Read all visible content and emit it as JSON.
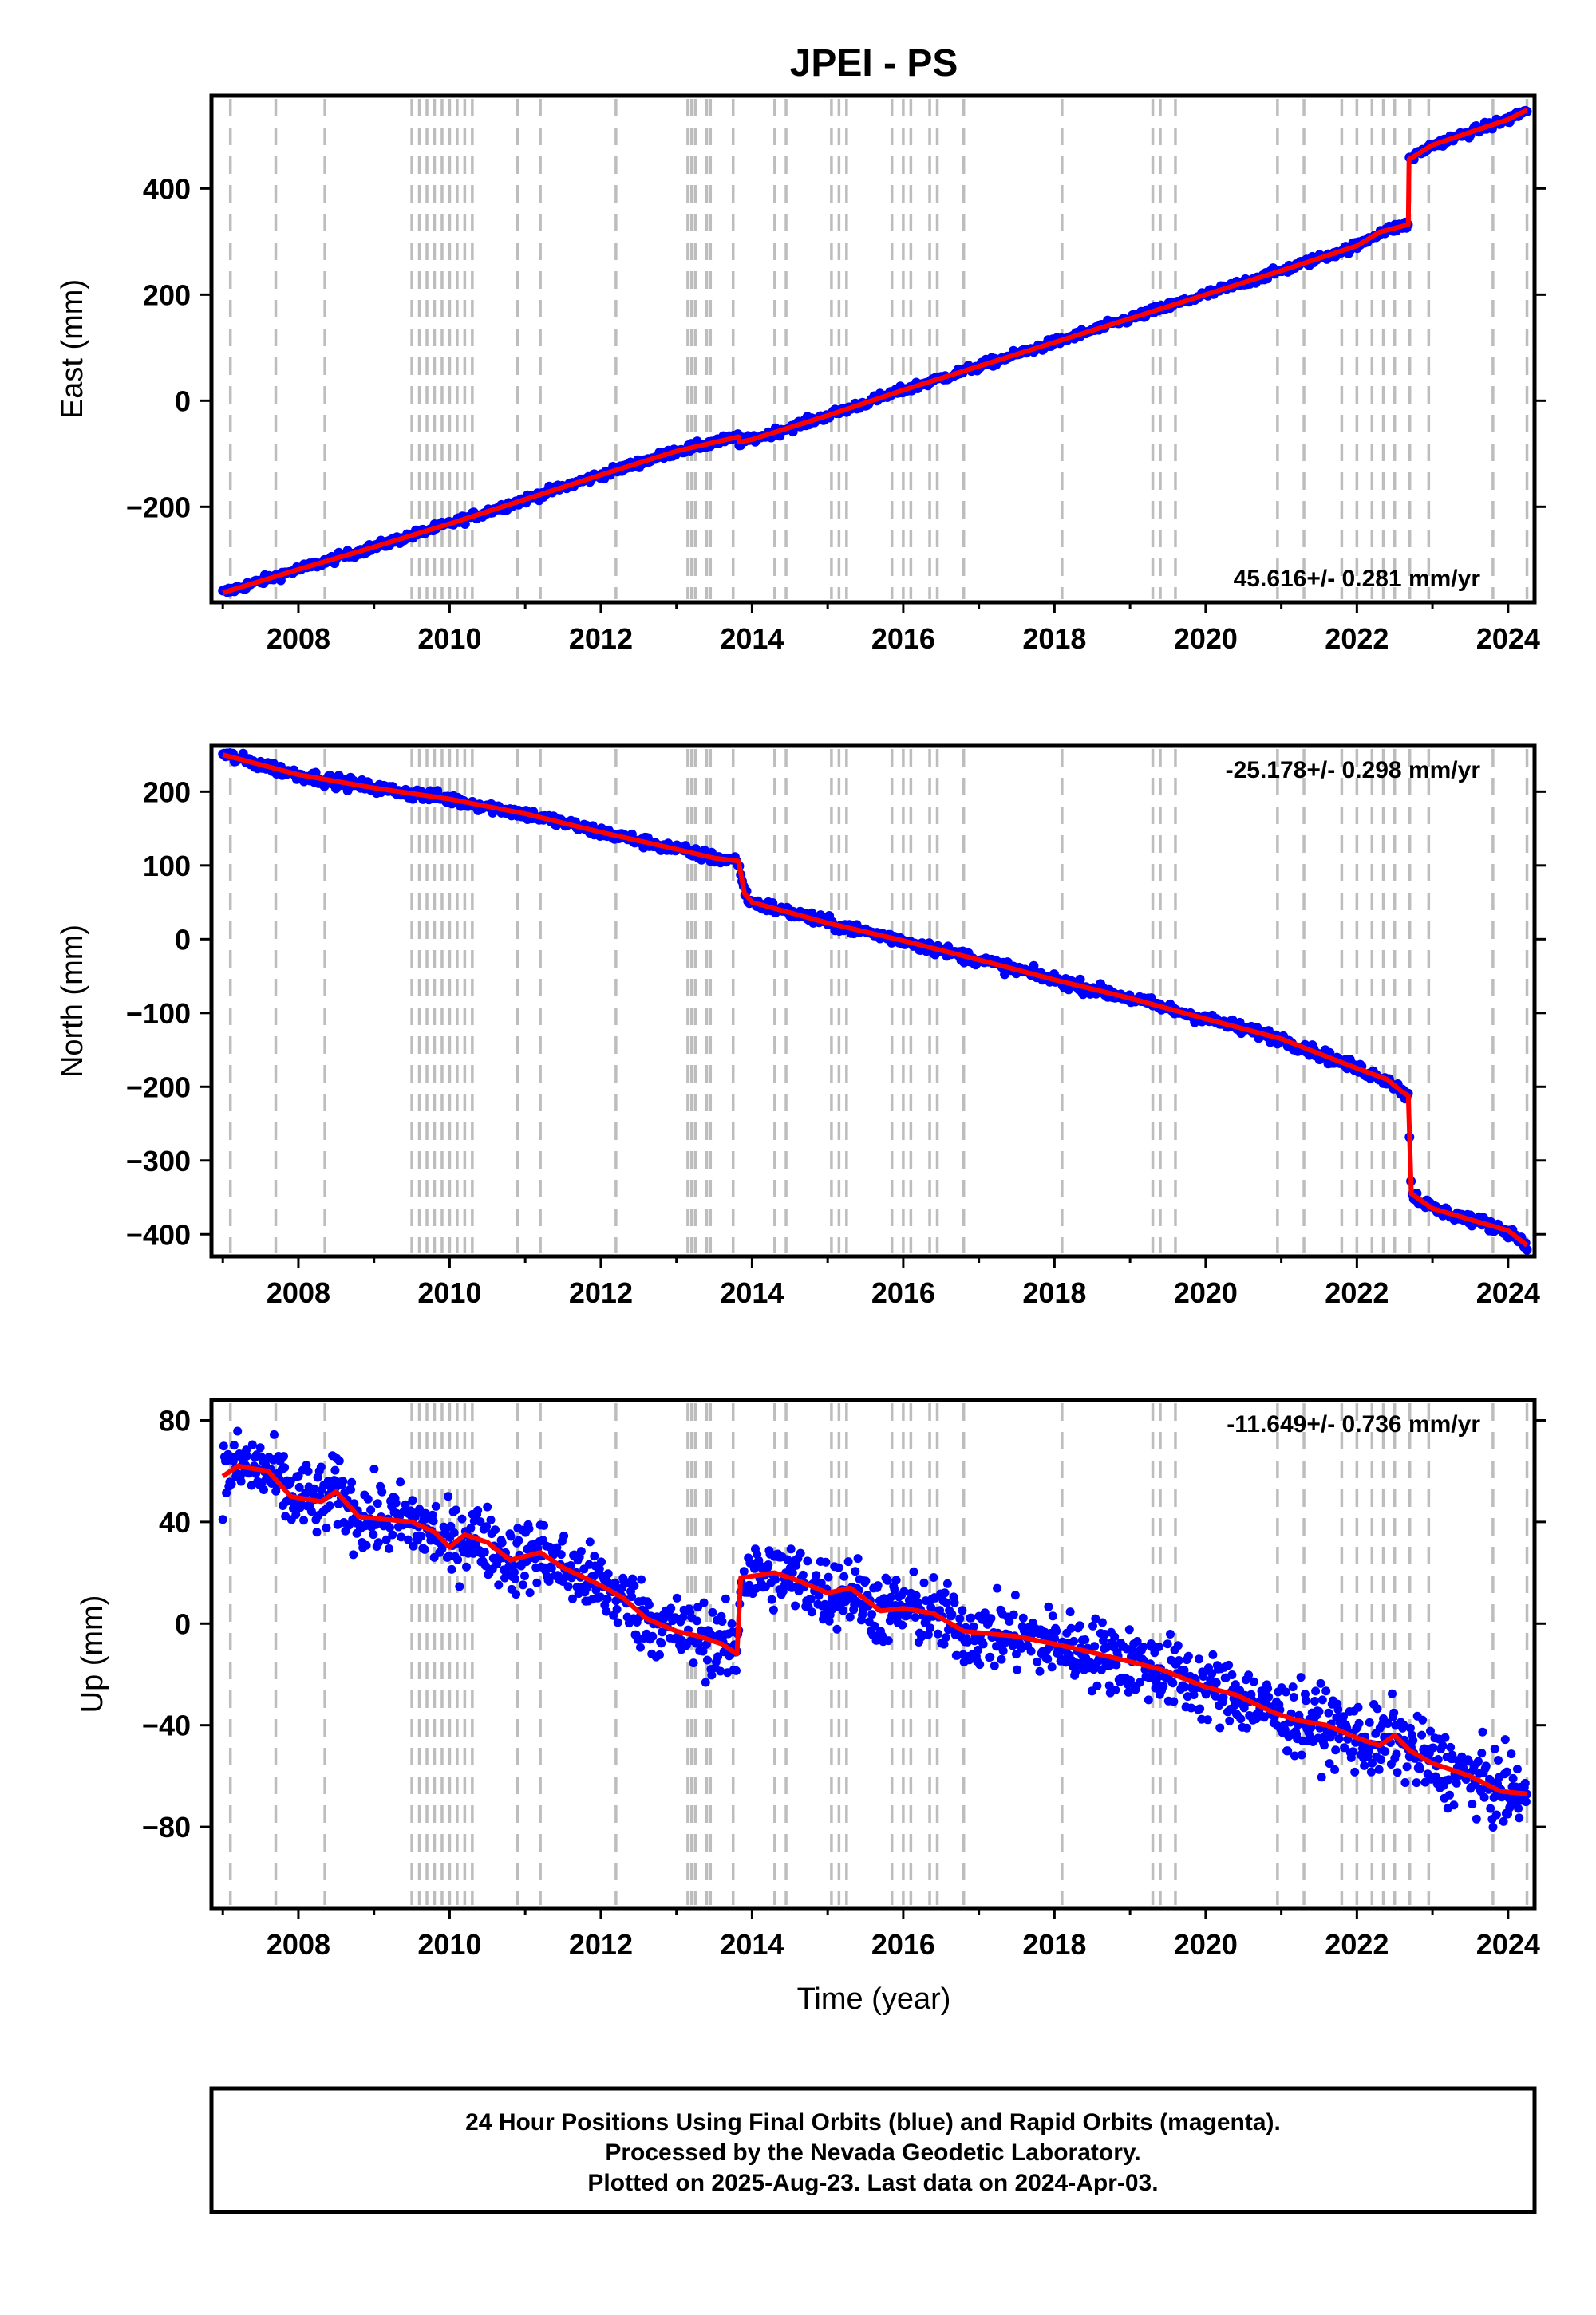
{
  "title": "JPEI - PS",
  "xlabel": "Time (year)",
  "footer": {
    "line1": "24 Hour Positions Using Final Orbits (blue) and Rapid Orbits (magenta).",
    "line2": "Processed by the Nevada Geodetic Laboratory.",
    "line3": "Plotted on 2025-Aug-23. Last data on 2024-Apr-03."
  },
  "colors": {
    "points": "#0000ff",
    "model": "#ff0000",
    "dashes": "#bdbdbd",
    "frame": "#000000"
  },
  "chart_data": {
    "type": "scatter",
    "xlim": [
      2006.85,
      2024.35
    ],
    "x_ticks": [
      2008,
      2010,
      2012,
      2014,
      2016,
      2018,
      2020,
      2022,
      2024
    ],
    "x_tick_labels": [
      "2008",
      "2010",
      "2012",
      "2014",
      "2016",
      "2018",
      "2020",
      "2022",
      "2024"
    ],
    "event_lines": [
      2007.1,
      2007.7,
      2008.35,
      2009.5,
      2009.6,
      2009.7,
      2009.8,
      2009.9,
      2010.0,
      2010.1,
      2010.2,
      2010.3,
      2010.9,
      2011.2,
      2012.2,
      2013.15,
      2013.2,
      2013.25,
      2013.4,
      2013.45,
      2013.75,
      2014.3,
      2014.45,
      2015.05,
      2015.15,
      2015.25,
      2015.85,
      2016.0,
      2016.1,
      2016.35,
      2016.45,
      2016.8,
      2018.1,
      2019.3,
      2019.4,
      2019.6,
      2020.95,
      2021.3,
      2021.8,
      2022.0,
      2022.2,
      2022.35,
      2022.5,
      2022.7,
      2022.95,
      2023.8,
      2024.25
    ],
    "panels": [
      {
        "component": "East",
        "ylabel": "East (mm)",
        "ylim": [
          -380,
          575
        ],
        "y_ticks": [
          -200,
          0,
          200,
          400
        ],
        "y_tick_labels": [
          "−200",
          "0",
          "200",
          "400"
        ],
        "rate": "45.616+/- 0.281 mm/yr",
        "rate_position": "bottom-right",
        "noise": 4,
        "model": [
          [
            2007.0,
            -362
          ],
          [
            2008.0,
            -318
          ],
          [
            2009.0,
            -276
          ],
          [
            2010.0,
            -232
          ],
          [
            2011.0,
            -186
          ],
          [
            2012.0,
            -140
          ],
          [
            2013.0,
            -95
          ],
          [
            2013.82,
            -68
          ],
          [
            2013.83,
            -78
          ],
          [
            2014.0,
            -73
          ],
          [
            2015.0,
            -28
          ],
          [
            2016.0,
            20
          ],
          [
            2017.0,
            65
          ],
          [
            2018.0,
            110
          ],
          [
            2019.0,
            155
          ],
          [
            2020.0,
            200
          ],
          [
            2021.0,
            245
          ],
          [
            2022.0,
            292
          ],
          [
            2022.3,
            318
          ],
          [
            2022.68,
            332
          ],
          [
            2022.69,
            455
          ],
          [
            2023.0,
            482
          ],
          [
            2024.0,
            530
          ],
          [
            2024.25,
            548
          ]
        ]
      },
      {
        "component": "North",
        "ylabel": "North (mm)",
        "ylim": [
          -430,
          262
        ],
        "y_ticks": [
          -400,
          -300,
          -200,
          -100,
          0,
          100,
          200
        ],
        "y_tick_labels": [
          "−400",
          "−300",
          "−200",
          "−100",
          "0",
          "100",
          "200"
        ],
        "rate": "-25.178+/- 0.298 mm/yr",
        "rate_position": "top-right",
        "noise": 4,
        "model": [
          [
            2007.0,
            250
          ],
          [
            2008.0,
            223
          ],
          [
            2009.0,
            205
          ],
          [
            2010.0,
            190
          ],
          [
            2011.0,
            170
          ],
          [
            2012.0,
            145
          ],
          [
            2013.0,
            122
          ],
          [
            2013.5,
            110
          ],
          [
            2013.82,
            106
          ],
          [
            2013.9,
            62
          ],
          [
            2014.0,
            50
          ],
          [
            2015.0,
            22
          ],
          [
            2016.0,
            -2
          ],
          [
            2017.0,
            -28
          ],
          [
            2018.0,
            -55
          ],
          [
            2019.0,
            -80
          ],
          [
            2020.0,
            -108
          ],
          [
            2021.0,
            -135
          ],
          [
            2022.0,
            -175
          ],
          [
            2022.4,
            -190
          ],
          [
            2022.6,
            -207
          ],
          [
            2022.68,
            -212
          ],
          [
            2022.72,
            -345
          ],
          [
            2023.0,
            -365
          ],
          [
            2024.0,
            -395
          ],
          [
            2024.25,
            -415
          ]
        ]
      },
      {
        "component": "Up",
        "ylabel": "Up (mm)",
        "ylim": [
          -112,
          88
        ],
        "y_ticks": [
          -80,
          -40,
          0,
          40,
          80
        ],
        "y_tick_labels": [
          "−80",
          "−40",
          "0",
          "40",
          "80"
        ],
        "rate": "-11.649+/- 0.736 mm/yr",
        "rate_position": "top-right",
        "noise": 7,
        "model": [
          [
            2007.0,
            58
          ],
          [
            2007.2,
            62
          ],
          [
            2007.6,
            60
          ],
          [
            2007.9,
            50
          ],
          [
            2008.3,
            48
          ],
          [
            2008.5,
            52
          ],
          [
            2008.8,
            42
          ],
          [
            2009.5,
            40
          ],
          [
            2009.8,
            36
          ],
          [
            2010.0,
            30
          ],
          [
            2010.2,
            35
          ],
          [
            2010.5,
            32
          ],
          [
            2010.8,
            25
          ],
          [
            2011.2,
            28
          ],
          [
            2011.5,
            22
          ],
          [
            2012.0,
            15
          ],
          [
            2012.3,
            10
          ],
          [
            2012.6,
            2
          ],
          [
            2013.0,
            -3
          ],
          [
            2013.3,
            -5
          ],
          [
            2013.6,
            -8
          ],
          [
            2013.8,
            -12
          ],
          [
            2013.85,
            18
          ],
          [
            2014.3,
            20
          ],
          [
            2014.6,
            17
          ],
          [
            2015.0,
            12
          ],
          [
            2015.3,
            14
          ],
          [
            2015.7,
            5
          ],
          [
            2016.0,
            6
          ],
          [
            2016.4,
            4
          ],
          [
            2016.8,
            -3
          ],
          [
            2017.5,
            -5
          ],
          [
            2018.0,
            -8
          ],
          [
            2018.3,
            -10
          ],
          [
            2019.0,
            -15
          ],
          [
            2019.4,
            -18
          ],
          [
            2020.0,
            -25
          ],
          [
            2020.4,
            -28
          ],
          [
            2020.9,
            -35
          ],
          [
            2021.2,
            -38
          ],
          [
            2021.6,
            -40
          ],
          [
            2022.0,
            -45
          ],
          [
            2022.3,
            -48
          ],
          [
            2022.5,
            -44
          ],
          [
            2022.7,
            -50
          ],
          [
            2023.0,
            -55
          ],
          [
            2023.5,
            -60
          ],
          [
            2023.9,
            -66
          ],
          [
            2024.25,
            -67
          ]
        ]
      }
    ]
  }
}
